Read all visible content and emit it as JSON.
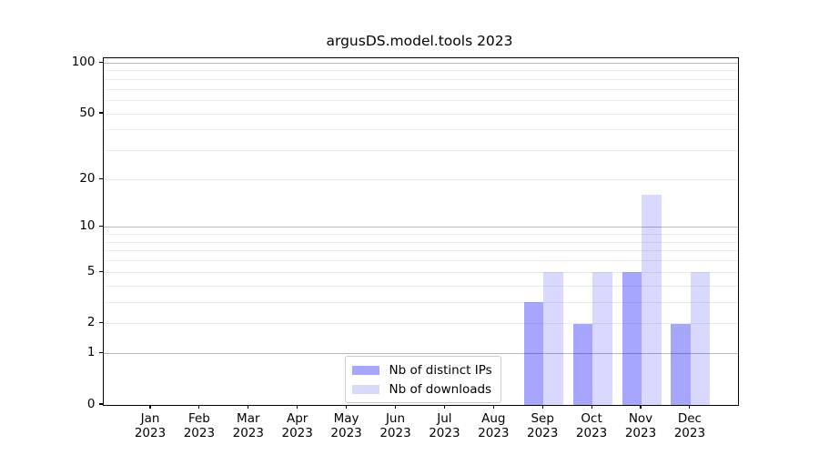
{
  "chart_data": {
    "type": "bar",
    "title": "argusDS.model.tools 2023",
    "categories": [
      "Jan",
      "Feb",
      "Mar",
      "Apr",
      "May",
      "Jun",
      "Jul",
      "Aug",
      "Sep",
      "Oct",
      "Nov",
      "Dec"
    ],
    "category_year": "2023",
    "series": [
      {
        "name": "Nb of distinct IPs",
        "color": "rgba(0,0,255,0.35)",
        "values": [
          0,
          0,
          0,
          0,
          0,
          0,
          0,
          0,
          3,
          2,
          5,
          2
        ]
      },
      {
        "name": "Nb of downloads",
        "color": "rgba(0,0,255,0.15)",
        "values": [
          0,
          0,
          0,
          0,
          0,
          0,
          0,
          0,
          5,
          5,
          16,
          5
        ]
      }
    ],
    "xlabel": "",
    "ylabel": "",
    "yscale": "log1p",
    "y_ticks": [
      0,
      1,
      2,
      5,
      10,
      20,
      50,
      100
    ],
    "y_major_grid": [
      1,
      10,
      100
    ],
    "y_minor_grid": [
      2,
      3,
      4,
      5,
      6,
      7,
      8,
      9,
      20,
      30,
      40,
      50,
      60,
      70,
      80,
      90
    ],
    "ylim": [
      0,
      107
    ],
    "grid": {
      "major_color": "#b9b9b9",
      "minor_color": "#ebebeb"
    },
    "legend_position": "lower center",
    "colors": {
      "spine": "#000000",
      "background": "#ffffff",
      "text": "#000000"
    }
  }
}
